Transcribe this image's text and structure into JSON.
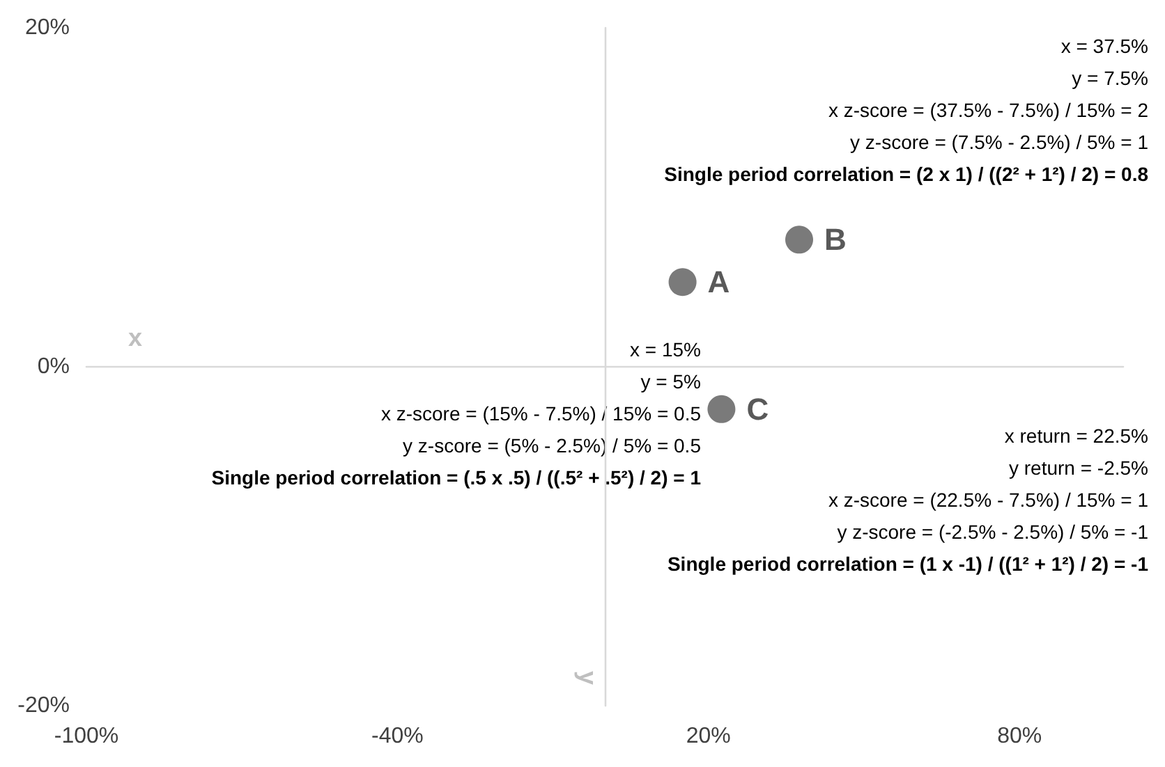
{
  "chart_data": {
    "type": "scatter",
    "xlabel": "x",
    "ylabel": "y",
    "x": [
      15,
      37.5,
      22.5
    ],
    "values": [
      5,
      7.5,
      -2.5
    ],
    "color": "#595959",
    "marker": "circle",
    "xlim": [
      -100,
      100
    ],
    "xticks": [
      {
        "value": -100,
        "label": "-100%"
      },
      {
        "value": -40,
        "label": "-40%"
      },
      {
        "value": 20,
        "label": "20%"
      },
      {
        "value": 80,
        "label": "80%"
      }
    ],
    "ylim": [
      -20,
      20
    ],
    "yticks": [
      {
        "value": -20,
        "label": "-20%"
      },
      {
        "value": 0,
        "label": "0%"
      },
      {
        "value": 20,
        "label": "20%"
      }
    ],
    "annotations": [
      {
        "text": "A",
        "x": 15,
        "y": 5
      },
      {
        "text": "B",
        "x": 37.5,
        "y": 7.5
      },
      {
        "text": "C",
        "x": 22.5,
        "y": -2.5
      },
      "x = 37.5%\ny = 7.5%\nx z-score = (37.5% - 7.5%) / 15% = 2\ny z-score = (7.5% - 2.5%) / 5% = 1\nSingle period correlation = (2 x 1) / ((2² + 1²) / 2) = 0.8",
      "x = 15%\ny = 5%\nx z-score = (15% - 7.5%) / 15% = 0.5\ny z-score = (5% - 2.5%) / 5% = 0.5\nSingle period correlation = (.5 x .5) / ((.5² + .5²) / 2) = 1",
      "x return = 22.5%\ny return = -2.5%\nx z-score = (22.5% - 7.5%) / 15% = 1\ny z-score = (-2.5% - 2.5%) / 5% = -1\nSingle period correlation = (1 x -1) / ((1² + 1²) / 2) = -1"
    ]
  }
}
